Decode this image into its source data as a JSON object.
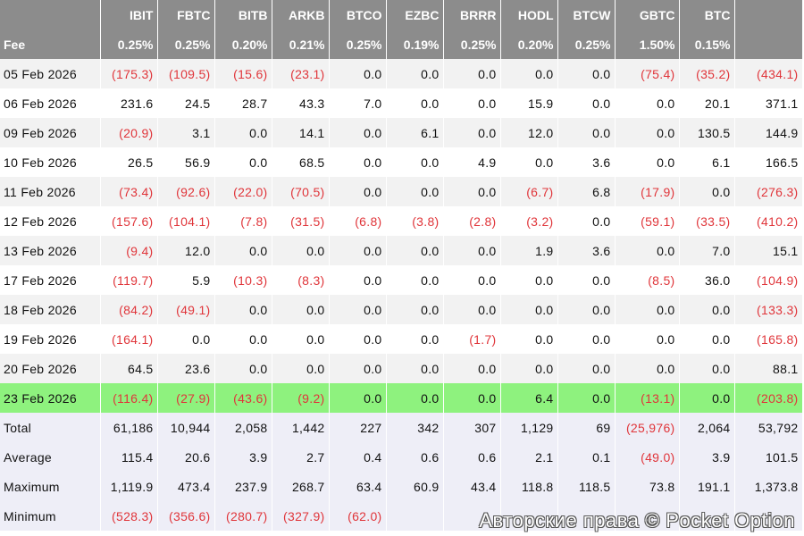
{
  "header": {
    "corner": "",
    "tickers": [
      "IBIT",
      "FBTC",
      "BITB",
      "ARKB",
      "BTCO",
      "EZBC",
      "BRRR",
      "HODL",
      "BTCW",
      "GBTC",
      "BTC",
      ""
    ]
  },
  "fee": {
    "label": "Fee",
    "values": [
      "0.25%",
      "0.25%",
      "0.20%",
      "0.21%",
      "0.25%",
      "0.19%",
      "0.25%",
      "0.20%",
      "0.25%",
      "1.50%",
      "0.15%",
      ""
    ]
  },
  "rows": [
    {
      "label": "05 Feb 2026",
      "values": [
        "(175.3)",
        "(109.5)",
        "(15.6)",
        "(23.1)",
        "0.0",
        "0.0",
        "0.0",
        "0.0",
        "0.0",
        "(75.4)",
        "(35.2)",
        "(434.1)"
      ]
    },
    {
      "label": "06 Feb 2026",
      "values": [
        "231.6",
        "24.5",
        "28.7",
        "43.3",
        "7.0",
        "0.0",
        "0.0",
        "15.9",
        "0.0",
        "0.0",
        "20.1",
        "371.1"
      ]
    },
    {
      "label": "09 Feb 2026",
      "values": [
        "(20.9)",
        "3.1",
        "0.0",
        "14.1",
        "0.0",
        "6.1",
        "0.0",
        "12.0",
        "0.0",
        "0.0",
        "130.5",
        "144.9"
      ]
    },
    {
      "label": "10 Feb 2026",
      "values": [
        "26.5",
        "56.9",
        "0.0",
        "68.5",
        "0.0",
        "0.0",
        "4.9",
        "0.0",
        "3.6",
        "0.0",
        "6.1",
        "166.5"
      ]
    },
    {
      "label": "11 Feb 2026",
      "values": [
        "(73.4)",
        "(92.6)",
        "(22.0)",
        "(70.5)",
        "0.0",
        "0.0",
        "0.0",
        "(6.7)",
        "6.8",
        "(17.9)",
        "0.0",
        "(276.3)"
      ]
    },
    {
      "label": "12 Feb 2026",
      "values": [
        "(157.6)",
        "(104.1)",
        "(7.8)",
        "(31.5)",
        "(6.8)",
        "(3.8)",
        "(2.8)",
        "(3.2)",
        "0.0",
        "(59.1)",
        "(33.5)",
        "(410.2)"
      ]
    },
    {
      "label": "13 Feb 2026",
      "values": [
        "(9.4)",
        "12.0",
        "0.0",
        "0.0",
        "0.0",
        "0.0",
        "0.0",
        "1.9",
        "3.6",
        "0.0",
        "7.0",
        "15.1"
      ]
    },
    {
      "label": "17 Feb 2026",
      "values": [
        "(119.7)",
        "5.9",
        "(10.3)",
        "(8.3)",
        "0.0",
        "0.0",
        "0.0",
        "0.0",
        "0.0",
        "(8.5)",
        "36.0",
        "(104.9)"
      ]
    },
    {
      "label": "18 Feb 2026",
      "values": [
        "(84.2)",
        "(49.1)",
        "0.0",
        "0.0",
        "0.0",
        "0.0",
        "0.0",
        "0.0",
        "0.0",
        "0.0",
        "0.0",
        "(133.3)"
      ]
    },
    {
      "label": "19 Feb 2026",
      "values": [
        "(164.1)",
        "0.0",
        "0.0",
        "0.0",
        "0.0",
        "0.0",
        "(1.7)",
        "0.0",
        "0.0",
        "0.0",
        "0.0",
        "(165.8)"
      ]
    },
    {
      "label": "20 Feb 2026",
      "values": [
        "64.5",
        "23.6",
        "0.0",
        "0.0",
        "0.0",
        "0.0",
        "0.0",
        "0.0",
        "0.0",
        "0.0",
        "0.0",
        "88.1"
      ]
    },
    {
      "label": "23 Feb 2026",
      "values": [
        "(116.4)",
        "(27.9)",
        "(43.6)",
        "(9.2)",
        "0.0",
        "0.0",
        "0.0",
        "6.4",
        "0.0",
        "(13.1)",
        "0.0",
        "(203.8)"
      ],
      "highlight": true
    },
    {
      "label": "Total",
      "values": [
        "61,186",
        "10,944",
        "2,058",
        "1,442",
        "227",
        "342",
        "307",
        "1,129",
        "69",
        "(25,976)",
        "2,064",
        "53,792"
      ],
      "stat": true
    },
    {
      "label": "Average",
      "values": [
        "115.4",
        "20.6",
        "3.9",
        "2.7",
        "0.4",
        "0.6",
        "0.6",
        "2.1",
        "0.1",
        "(49.0)",
        "3.9",
        "101.5"
      ],
      "stat": true
    },
    {
      "label": "Maximum",
      "values": [
        "1,119.9",
        "473.4",
        "237.9",
        "268.7",
        "63.4",
        "60.9",
        "43.4",
        "118.8",
        "118.5",
        "73.8",
        "191.1",
        "1,373.8"
      ],
      "stat": true
    },
    {
      "label": "Minimum",
      "values": [
        "(528.3)",
        "(356.6)",
        "(280.7)",
        "(327.9)",
        "(62.0)",
        "",
        "",
        "",
        "",
        "",
        "",
        ""
      ],
      "stat": true
    }
  ],
  "watermark": "Авторские права © Pocket Option",
  "colors": {
    "negative": "#e0353a",
    "header_bg": "#8c8c8c",
    "highlight": "#8ef27e"
  }
}
